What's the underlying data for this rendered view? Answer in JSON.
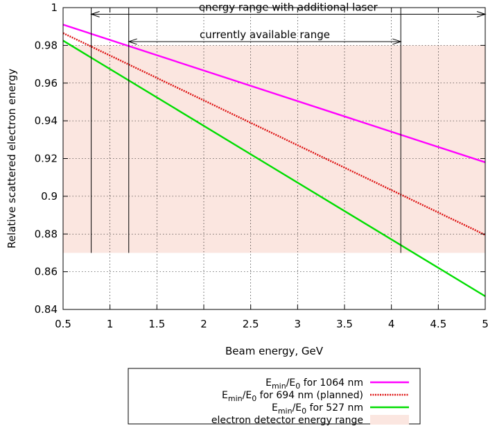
{
  "chart_data": {
    "type": "line",
    "xlabel": "Beam energy, GeV",
    "ylabel": "Relative scattered electron energy",
    "xlim": [
      0.5,
      5
    ],
    "ylim": [
      0.84,
      1
    ],
    "xticks": [
      "0.5",
      "1",
      "1.5",
      "2",
      "2.5",
      "3",
      "3.5",
      "4",
      "4.5",
      "5"
    ],
    "yticks": [
      "0.84",
      "0.86",
      "0.88",
      "0.9",
      "0.92",
      "0.94",
      "0.96",
      "0.98",
      "1"
    ],
    "xtick_values": [
      0.5,
      1,
      1.5,
      2,
      2.5,
      3,
      3.5,
      4,
      4.5,
      5
    ],
    "ytick_values": [
      0.84,
      0.86,
      0.88,
      0.9,
      0.92,
      0.94,
      0.96,
      0.98,
      1
    ],
    "grid": true,
    "legend_placement": "below",
    "series": [
      {
        "name": "E_min/E_0 for 1064 nm",
        "name_main": "E",
        "name_sub1": "min",
        "name_mid": "/E",
        "name_sub2": "0",
        "name_tail": " for 1064 nm",
        "x": [
          0.5,
          5
        ],
        "y": [
          0.991,
          0.918
        ],
        "color": "#ff00ff",
        "style": "solid"
      },
      {
        "name": "E_min/E_0 for 694 nm (planned)",
        "name_main": "E",
        "name_sub1": "min",
        "name_mid": "/E",
        "name_sub2": "0",
        "name_tail": " for 694 nm (planned)",
        "x": [
          0.5,
          5
        ],
        "y": [
          0.9865,
          0.8795
        ],
        "color": "#dd1111",
        "style": "dotted"
      },
      {
        "name": "E_min/E_0 for 527 nm",
        "name_main": "E",
        "name_sub1": "min",
        "name_mid": "/E",
        "name_sub2": "0",
        "name_tail": " for 527 nm",
        "x": [
          0.5,
          5
        ],
        "y": [
          0.9825,
          0.847
        ],
        "color": "#00dd00",
        "style": "solid"
      }
    ],
    "band": {
      "name": "electron detector energy range",
      "ymin": 0.87,
      "ymax": 0.98,
      "xmin": 0.5,
      "xmax": 5,
      "color": "#fbe6e0"
    },
    "annotations": [
      {
        "text": "energy range with additional laser",
        "x1": 0.8,
        "x2": 5,
        "y_arrow": 0.9965,
        "y_bottom": 0.87
      },
      {
        "text": "currently available range",
        "x1": 1.2,
        "x2": 4.1,
        "y_arrow": 0.982,
        "y_bottom": 0.87
      }
    ]
  }
}
